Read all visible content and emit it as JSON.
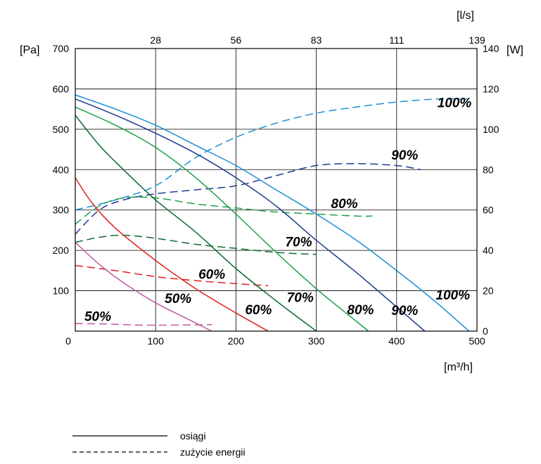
{
  "chart_data": {
    "type": "line",
    "units": {
      "left_y": "[Pa]",
      "right_y": "[W]",
      "bottom_x": "[m³/h]",
      "top_x": "[l/s]"
    },
    "x_ticks": [
      "0",
      "100",
      "200",
      "300",
      "400",
      "500"
    ],
    "top_ticks": [
      "28",
      "56",
      "83",
      "111",
      "139"
    ],
    "y_left_ticks": [
      "100",
      "200",
      "300",
      "400",
      "500",
      "600",
      "700"
    ],
    "y_right_ticks": [
      "0",
      "20",
      "40",
      "60",
      "80",
      "100",
      "120",
      "140"
    ],
    "xlim": [
      0,
      500
    ],
    "ylim_left": [
      0,
      700
    ],
    "ylim_right": [
      0,
      140
    ],
    "grid": true,
    "colors": {
      "100%": "#1a8fd6",
      "90%": "#1f3a8f",
      "80%": "#1aa04a",
      "70%": "#0b6b2e",
      "60%": "#e02020",
      "50%": "#c05aa0"
    },
    "performance_series": [
      {
        "name": "100%",
        "x": [
          0,
          50,
          100,
          150,
          200,
          250,
          300,
          350,
          400,
          450,
          490
        ],
        "y": [
          585,
          550,
          510,
          460,
          410,
          350,
          290,
          225,
          150,
          70,
          0
        ]
      },
      {
        "name": "90%",
        "x": [
          0,
          50,
          100,
          150,
          200,
          250,
          300,
          350,
          400,
          435
        ],
        "y": [
          575,
          535,
          490,
          440,
          380,
          310,
          225,
          145,
          60,
          0
        ]
      },
      {
        "name": "80%",
        "x": [
          0,
          50,
          100,
          150,
          200,
          250,
          300,
          340,
          365
        ],
        "y": [
          555,
          510,
          455,
          380,
          290,
          195,
          105,
          40,
          0
        ]
      },
      {
        "name": "70%",
        "x": [
          0,
          30,
          60,
          100,
          150,
          200,
          250,
          300
        ],
        "y": [
          535,
          460,
          400,
          325,
          245,
          155,
          75,
          0
        ]
      },
      {
        "name": "60%",
        "x": [
          0,
          20,
          50,
          100,
          150,
          200,
          240
        ],
        "y": [
          380,
          320,
          255,
          175,
          105,
          45,
          0
        ]
      },
      {
        "name": "50%",
        "x": [
          0,
          30,
          60,
          100,
          140,
          170
        ],
        "y": [
          220,
          165,
          120,
          70,
          30,
          0
        ]
      }
    ],
    "power_series": [
      {
        "name": "100%",
        "x": [
          0,
          50,
          100,
          150,
          200,
          250,
          300,
          350,
          400,
          450,
          490
        ],
        "y": [
          60,
          65,
          72,
          86,
          96,
          103,
          108,
          111,
          113.5,
          115,
          115
        ]
      },
      {
        "name": "90%",
        "x": [
          0,
          30,
          60,
          100,
          150,
          200,
          250,
          300,
          350,
          400,
          430
        ],
        "y": [
          48,
          60,
          65,
          68,
          70,
          72,
          77,
          82,
          83,
          82,
          80
        ]
      },
      {
        "name": "80%",
        "x": [
          0,
          30,
          60,
          100,
          150,
          200,
          250,
          300,
          350,
          370
        ],
        "y": [
          53,
          62,
          66,
          66,
          63,
          61,
          59,
          58,
          57,
          57
        ]
      },
      {
        "name": "70%",
        "x": [
          0,
          30,
          60,
          100,
          150,
          200,
          250,
          300
        ],
        "y": [
          44,
          46.5,
          47.5,
          46,
          43,
          41,
          39,
          38
        ]
      },
      {
        "name": "60%",
        "x": [
          0,
          50,
          100,
          150,
          200,
          240
        ],
        "y": [
          32.5,
          30,
          27,
          25,
          23.5,
          22.5
        ]
      },
      {
        "name": "50%",
        "x": [
          0,
          40,
          80,
          120,
          170
        ],
        "y": [
          3.8,
          3.5,
          3,
          3,
          3.2
        ]
      }
    ],
    "annotations": {
      "power": [
        {
          "text": "100%",
          "x": 472,
          "y": 111
        },
        {
          "text": "90%",
          "x": 410,
          "y": 85
        },
        {
          "text": "80%",
          "x": 335,
          "y": 61
        },
        {
          "text": "70%",
          "x": 278,
          "y": 42
        },
        {
          "text": "60%",
          "x": 170,
          "y": 26
        },
        {
          "text": "50%",
          "x": 28,
          "y": 5
        }
      ],
      "performance": [
        {
          "text": "100%",
          "x": 470,
          "y": 78
        },
        {
          "text": "90%",
          "x": 410,
          "y": 40
        },
        {
          "text": "80%",
          "x": 355,
          "y": 42
        },
        {
          "text": "70%",
          "x": 280,
          "y": 72
        },
        {
          "text": "60%",
          "x": 228,
          "y": 42
        },
        {
          "text": "50%",
          "x": 128,
          "y": 70
        }
      ]
    }
  },
  "legend": {
    "solid_label": "osiągi",
    "dashed_label": "zużycie energii"
  }
}
